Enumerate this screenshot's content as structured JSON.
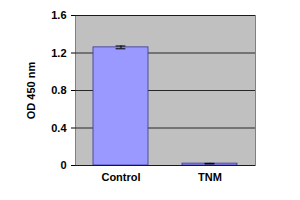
{
  "chart_data": {
    "type": "bar",
    "y_label": "OD 450 nm",
    "categories": [
      "Control",
      "TNM"
    ],
    "values": [
      1.26,
      0.02
    ],
    "errors": [
      0.015,
      0.003
    ],
    "color": "#9999ff",
    "ylim": [
      0,
      1.6
    ],
    "yticks": [
      0,
      0.4,
      0.8,
      1.2,
      1.6
    ],
    "grid": true
  }
}
